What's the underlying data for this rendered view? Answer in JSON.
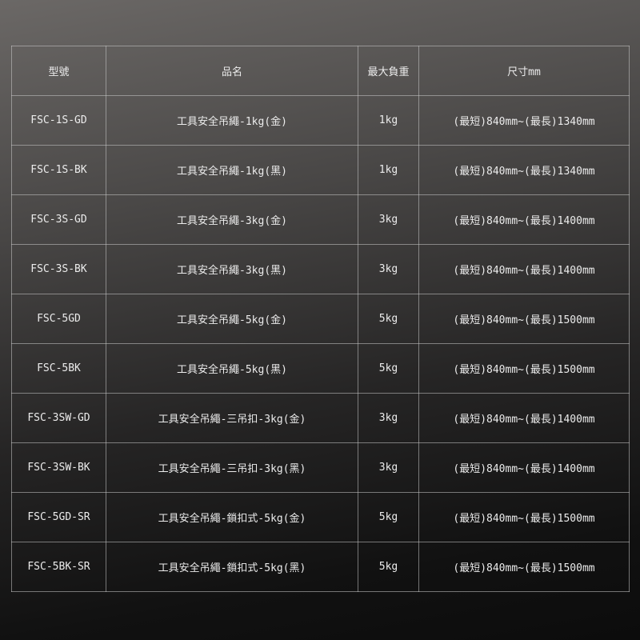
{
  "headers": [
    "型號",
    "品名",
    "最大負重",
    "尺寸mm"
  ],
  "rows": [
    [
      "FSC-1S-GD",
      "工具安全吊繩-1kg(金)",
      "1kg",
      "(最短)840mm~(最長)1340mm"
    ],
    [
      "FSC-1S-BK",
      "工具安全吊繩-1kg(黑)",
      "1kg",
      "(最短)840mm~(最長)1340mm"
    ],
    [
      "FSC-3S-GD",
      "工具安全吊繩-3kg(金)",
      "3kg",
      "(最短)840mm~(最長)1400mm"
    ],
    [
      "FSC-3S-BK",
      "工具安全吊繩-3kg(黑)",
      "3kg",
      "(最短)840mm~(最長)1400mm"
    ],
    [
      "FSC-5GD",
      "工具安全吊繩-5kg(金)",
      "5kg",
      "(最短)840mm~(最長)1500mm"
    ],
    [
      "FSC-5BK",
      "工具安全吊繩-5kg(黑)",
      "5kg",
      "(最短)840mm~(最長)1500mm"
    ],
    [
      "FSC-3SW-GD",
      "工具安全吊繩-三吊扣-3kg(金)",
      "3kg",
      "(最短)840mm~(最長)1400mm"
    ],
    [
      "FSC-3SW-BK",
      "工具安全吊繩-三吊扣-3kg(黑)",
      "3kg",
      "(最短)840mm~(最長)1400mm"
    ],
    [
      "FSC-5GD-SR",
      "工具安全吊繩-鎖扣式-5kg(金)",
      "5kg",
      "(最短)840mm~(最長)1500mm"
    ],
    [
      "FSC-5BK-SR",
      "工具安全吊繩-鎖扣式-5kg(黑)",
      "5kg",
      "(最短)840mm~(最長)1500mm"
    ]
  ]
}
